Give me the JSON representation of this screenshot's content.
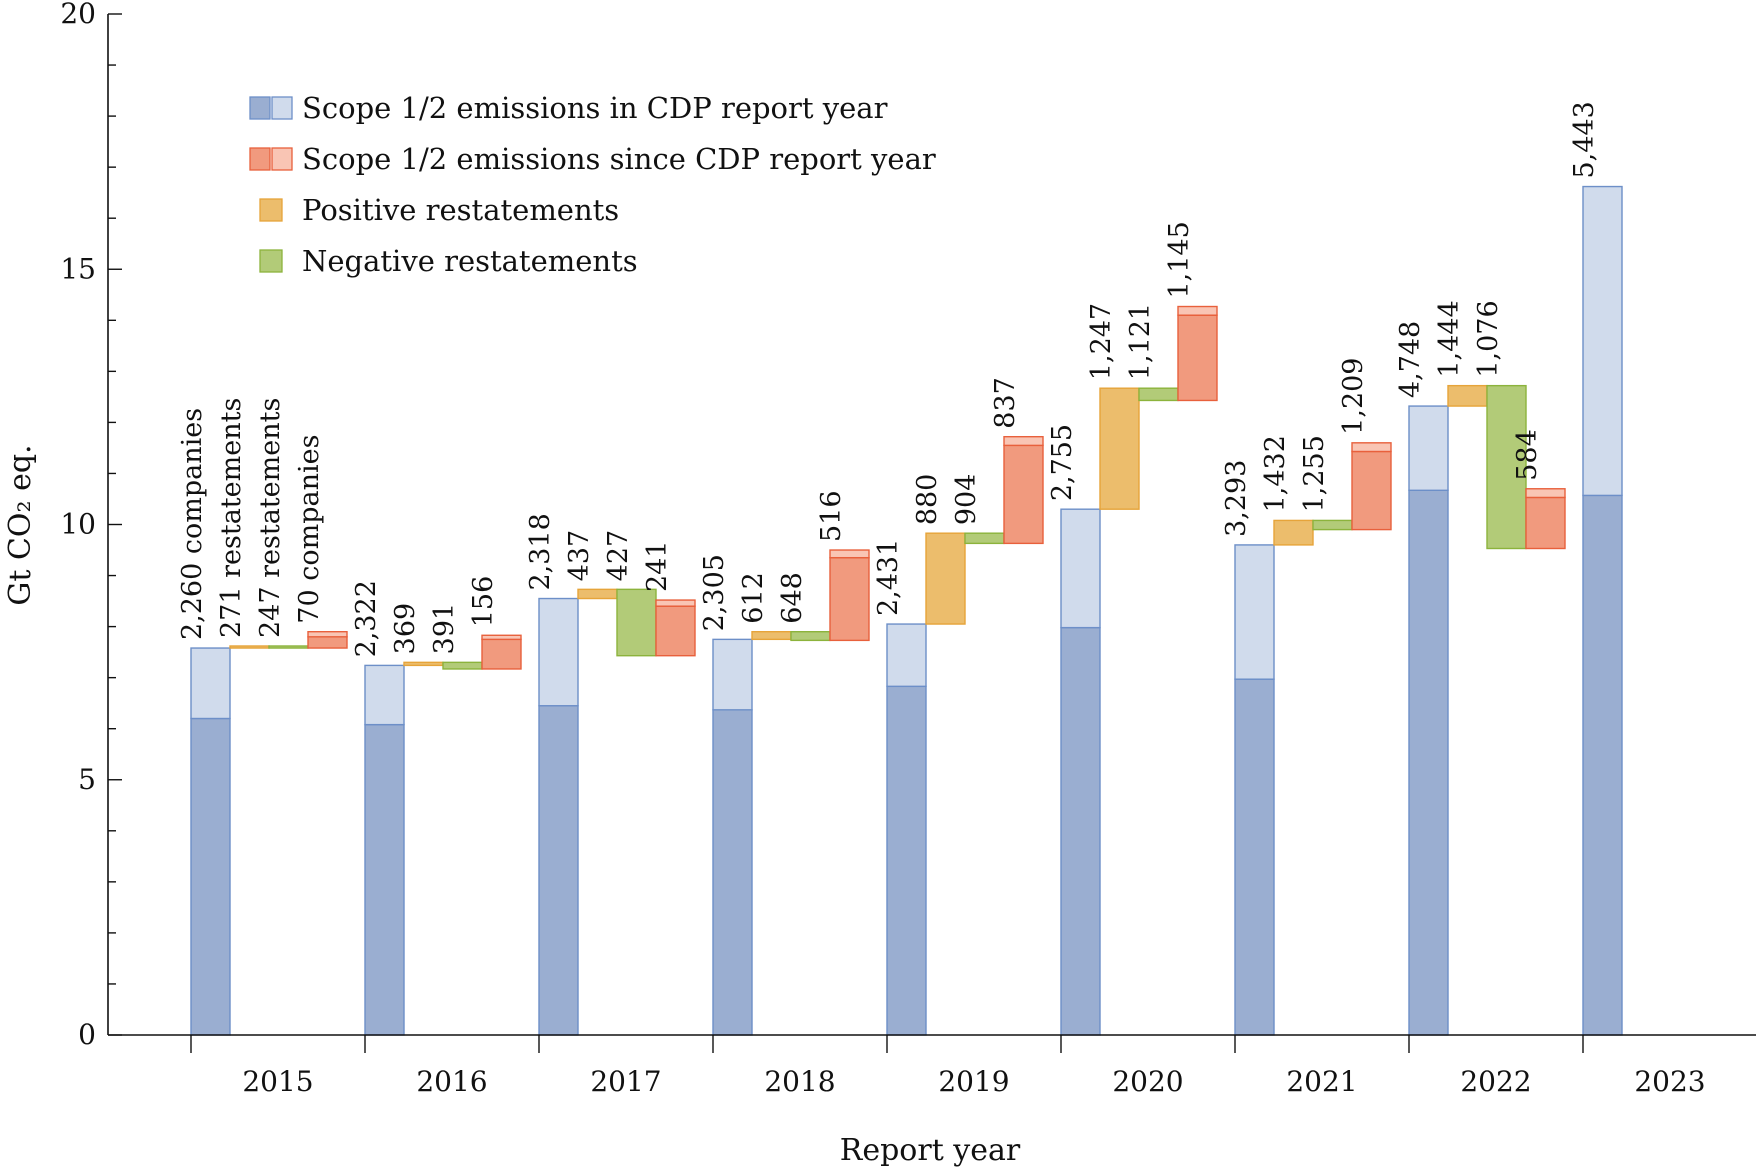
{
  "chart_data": {
    "type": "bar",
    "title": "",
    "xlabel": "Report year",
    "ylabel": "Gt CO₂ eq.",
    "ylim": [
      0,
      20
    ],
    "yticks": [
      0,
      5,
      10,
      15,
      20
    ],
    "grid": false,
    "legend_position": "top-left",
    "colors": {
      "report_dark": "#9aaed1",
      "report_light": "#d0dbec",
      "report_edge": "#6d8fc8",
      "since_dark": "#f19a7e",
      "since_light": "#f9c5b4",
      "since_edge": "#e8603c",
      "positive_fill": "#ecbd6c",
      "positive_edge": "#e6a43a",
      "negative_fill": "#b2cb78",
      "negative_edge": "#8cb33c"
    },
    "legend": [
      {
        "key": "report",
        "label": "Scope 1/2 emissions in CDP report year"
      },
      {
        "key": "since",
        "label": "Scope 1/2 emissions since CDP report year"
      },
      {
        "key": "positive",
        "label": "Positive restatements"
      },
      {
        "key": "negative",
        "label": "Negative restatements"
      }
    ],
    "categories": [
      "2015",
      "2016",
      "2017",
      "2018",
      "2019",
      "2020",
      "2021",
      "2022",
      "2023"
    ],
    "years": [
      {
        "year": "2015",
        "report": {
          "dark": 6.2,
          "total": 7.58,
          "label": "2,260 companies"
        },
        "positive": {
          "from": 7.58,
          "to": 7.62,
          "label": "271 restatements"
        },
        "negative": {
          "from": 7.62,
          "to": 7.58,
          "label": "247 restatements"
        },
        "since": {
          "base": 7.58,
          "top": 7.9,
          "light": 0.1,
          "label": "70 companies"
        }
      },
      {
        "year": "2016",
        "report": {
          "dark": 6.08,
          "total": 7.24,
          "label": "2,322"
        },
        "positive": {
          "from": 7.24,
          "to": 7.3,
          "label": "369"
        },
        "negative": {
          "from": 7.3,
          "to": 7.17,
          "label": "391"
        },
        "since": {
          "base": 7.17,
          "top": 7.83,
          "light": 0.08,
          "label": "156"
        }
      },
      {
        "year": "2017",
        "report": {
          "dark": 6.45,
          "total": 8.55,
          "label": "2,318"
        },
        "positive": {
          "from": 8.55,
          "to": 8.73,
          "label": "437"
        },
        "negative": {
          "from": 8.73,
          "to": 7.43,
          "label": "427"
        },
        "since": {
          "base": 7.43,
          "top": 8.52,
          "light": 0.12,
          "label": "241"
        }
      },
      {
        "year": "2018",
        "report": {
          "dark": 6.37,
          "total": 7.75,
          "label": "2,305"
        },
        "positive": {
          "from": 7.75,
          "to": 7.9,
          "label": "612"
        },
        "negative": {
          "from": 7.9,
          "to": 7.73,
          "label": "648"
        },
        "since": {
          "base": 7.73,
          "top": 9.5,
          "light": 0.15,
          "label": "516"
        }
      },
      {
        "year": "2019",
        "report": {
          "dark": 6.83,
          "total": 8.05,
          "label": "2,431"
        },
        "positive": {
          "from": 8.05,
          "to": 9.83,
          "label": "880"
        },
        "negative": {
          "from": 9.83,
          "to": 9.63,
          "label": "904"
        },
        "since": {
          "base": 9.63,
          "top": 11.72,
          "light": 0.17,
          "label": "837"
        }
      },
      {
        "year": "2020",
        "report": {
          "dark": 7.98,
          "total": 10.3,
          "label": "2,755"
        },
        "positive": {
          "from": 10.3,
          "to": 12.67,
          "label": "1,247"
        },
        "negative": {
          "from": 12.67,
          "to": 12.43,
          "label": "1,121"
        },
        "since": {
          "base": 12.43,
          "top": 14.27,
          "light": 0.17,
          "label": "1,145"
        }
      },
      {
        "year": "2021",
        "report": {
          "dark": 6.97,
          "total": 9.6,
          "label": "3,293"
        },
        "positive": {
          "from": 9.6,
          "to": 10.08,
          "label": "1,432"
        },
        "negative": {
          "from": 10.08,
          "to": 9.9,
          "label": "1,255"
        },
        "since": {
          "base": 9.9,
          "top": 11.6,
          "light": 0.17,
          "label": "1,209"
        }
      },
      {
        "year": "2022",
        "report": {
          "dark": 10.67,
          "total": 12.32,
          "label": "4,748"
        },
        "positive": {
          "from": 12.32,
          "to": 12.72,
          "label": "1,444"
        },
        "negative": {
          "from": 12.72,
          "to": 9.53,
          "label": "1,076"
        },
        "since": {
          "base": 9.53,
          "top": 10.7,
          "light": 0.17,
          "label": "584"
        }
      },
      {
        "year": "2023",
        "report": {
          "dark": 10.57,
          "total": 16.62,
          "label": "5,443"
        }
      }
    ]
  }
}
